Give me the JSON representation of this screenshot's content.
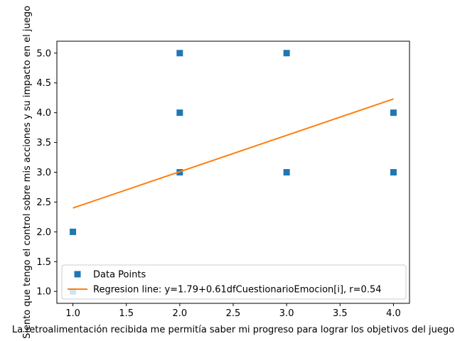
{
  "chart_data": {
    "type": "scatter",
    "xlabel": "La retroalimentación recibida  me permitía saber mi progreso para lograr los objetivos del juego",
    "ylabel": "Siento que tengo el control sobre mis acciones y su impacto en el juego",
    "xlim": [
      0.85,
      4.15
    ],
    "ylim": [
      0.8,
      5.2
    ],
    "xticks": [
      1.0,
      1.5,
      2.0,
      2.5,
      3.0,
      3.5,
      4.0
    ],
    "xtick_labels": [
      "1.0",
      "1.5",
      "2.0",
      "2.5",
      "3.0",
      "3.5",
      "4.0"
    ],
    "yticks": [
      1.0,
      1.5,
      2.0,
      2.5,
      3.0,
      3.5,
      4.0,
      4.5,
      5.0
    ],
    "ytick_labels": [
      "1.0",
      "1.5",
      "2.0",
      "2.5",
      "3.0",
      "3.5",
      "4.0",
      "4.5",
      "5.0"
    ],
    "grid": false,
    "legend_placement": "lower-left",
    "series": [
      {
        "name": "Data Points",
        "kind": "markers",
        "marker": "square",
        "color": "#1f77b4",
        "x": [
          1,
          1,
          2,
          2,
          2,
          3,
          3,
          4,
          4
        ],
        "y": [
          1,
          2,
          3,
          4,
          5,
          3,
          5,
          3,
          4
        ]
      },
      {
        "name": "Regresion line: y=1.79+0.61dfCuestionarioEmocion[i], r=0.54",
        "kind": "line",
        "color": "#ff7f0e",
        "x": [
          1,
          4
        ],
        "y": [
          2.4,
          4.23
        ]
      }
    ]
  }
}
